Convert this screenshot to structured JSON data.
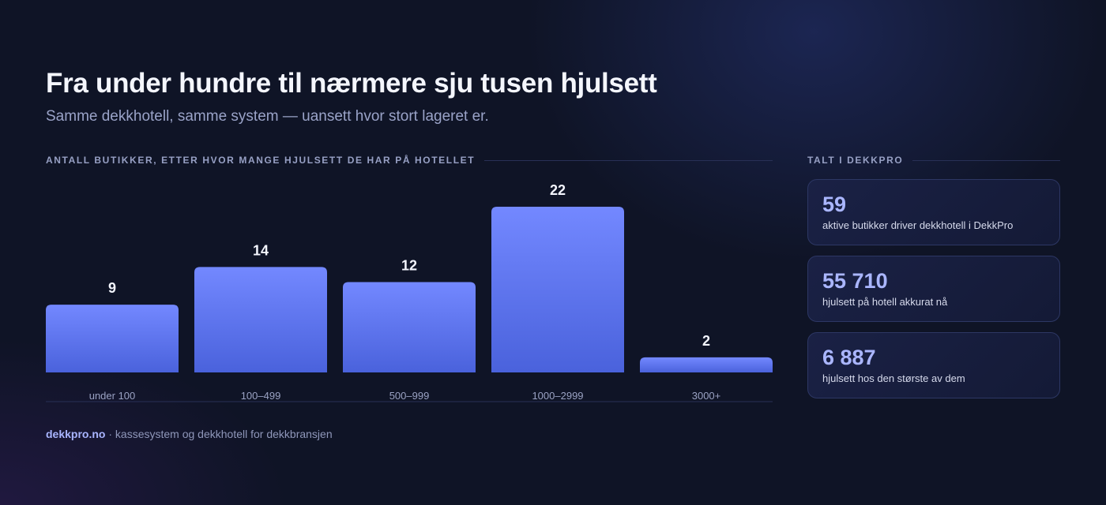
{
  "header": {
    "title": "Fra under hundre til nærmere sju tusen hjulsett",
    "subtitle": "Samme dekkhotell, samme system — uansett hvor stort lageret er."
  },
  "chart_section": {
    "label": "ANTALL BUTIKKER, ETTER HVOR MANGE HJULSETT DE HAR PÅ HOTELLET"
  },
  "stats_section": {
    "label": "TALT I DEKKPRO",
    "cards": [
      {
        "value": "59",
        "text": "aktive butikker driver dekkhotell i DekkPro"
      },
      {
        "value": "55 710",
        "text": "hjulsett på hotell akkurat nå"
      },
      {
        "value": "6 887",
        "text": "hjulsett hos den største av dem"
      }
    ]
  },
  "footer": {
    "brand": "dekkpro.no",
    "text": "· kassesystem og dekkhotell for dekkbransjen"
  },
  "colors": {
    "background": "#0f1426",
    "bar_top": "#7388ff",
    "bar_bottom": "#4a62dc",
    "accent_text": "#aab6ff"
  },
  "chart_data": {
    "type": "bar",
    "categories": [
      "under 100",
      "100–499",
      "500–999",
      "1000–2999",
      "3000+"
    ],
    "values": [
      9,
      14,
      12,
      22,
      2
    ],
    "ylim": [
      0,
      22
    ],
    "grid": false,
    "data_labels": true
  }
}
